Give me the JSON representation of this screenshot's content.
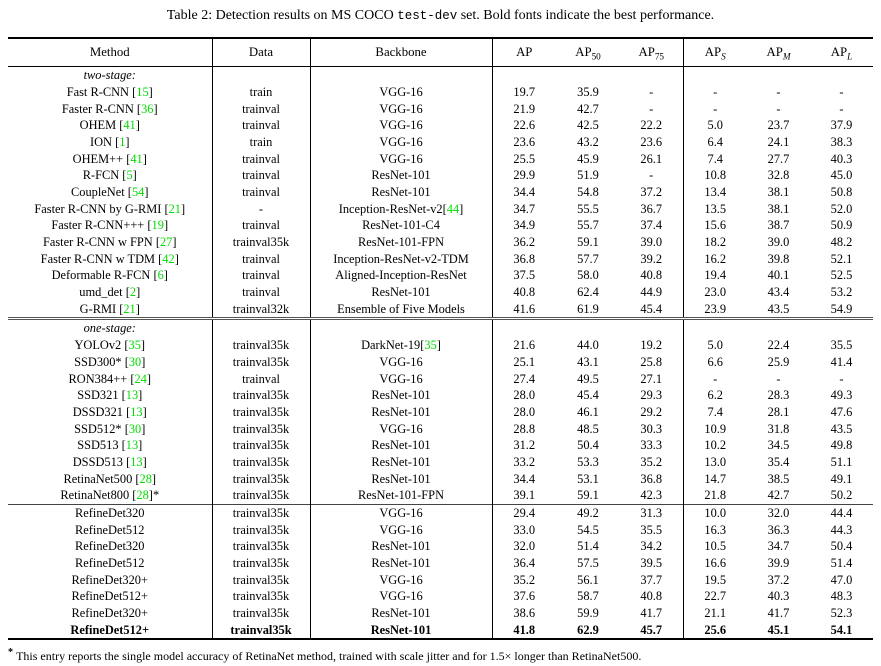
{
  "caption": {
    "prefix": "Table 2: Detection results on MS COCO ",
    "code": "test-dev",
    "suffix": " set. Bold fonts indicate the best performance."
  },
  "colors": {
    "citation": "#00dd00"
  },
  "table": {
    "headers": [
      {
        "base": "Method"
      },
      {
        "base": "Data"
      },
      {
        "base": "Backbone"
      },
      {
        "base": "AP"
      },
      {
        "base": "AP",
        "sub": "50"
      },
      {
        "base": "AP",
        "sub": "75"
      },
      {
        "base": "AP",
        "sub": "S"
      },
      {
        "base": "AP",
        "sub": "M"
      },
      {
        "base": "AP",
        "sub": "L"
      }
    ],
    "sections": [
      {
        "label": "two-stage:",
        "rows": [
          {
            "method": "Fast R-CNN",
            "cite": "15",
            "data": "train",
            "backbone": "VGG-16",
            "values": [
              "19.7",
              "35.9",
              "-",
              "-",
              "-",
              "-"
            ]
          },
          {
            "method": "Faster R-CNN",
            "cite": "36",
            "data": "trainval",
            "backbone": "VGG-16",
            "values": [
              "21.9",
              "42.7",
              "-",
              "-",
              "-",
              "-"
            ]
          },
          {
            "method": "OHEM",
            "cite": "41",
            "data": "trainval",
            "backbone": "VGG-16",
            "values": [
              "22.6",
              "42.5",
              "22.2",
              "5.0",
              "23.7",
              "37.9"
            ]
          },
          {
            "method": "ION",
            "cite": "1",
            "data": "train",
            "backbone": "VGG-16",
            "values": [
              "23.6",
              "43.2",
              "23.6",
              "6.4",
              "24.1",
              "38.3"
            ]
          },
          {
            "method": "OHEM++",
            "cite": "41",
            "data": "trainval",
            "backbone": "VGG-16",
            "values": [
              "25.5",
              "45.9",
              "26.1",
              "7.4",
              "27.7",
              "40.3"
            ]
          },
          {
            "method": "R-FCN",
            "cite": "5",
            "data": "trainval",
            "backbone": "ResNet-101",
            "values": [
              "29.9",
              "51.9",
              "-",
              "10.8",
              "32.8",
              "45.0"
            ]
          },
          {
            "method": "CoupleNet",
            "cite": "54",
            "data": "trainval",
            "backbone": "ResNet-101",
            "values": [
              "34.4",
              "54.8",
              "37.2",
              "13.4",
              "38.1",
              "50.8"
            ]
          },
          {
            "method": "Faster R-CNN by G-RMI",
            "cite": "21",
            "data": "-",
            "backbone": "Inception-ResNet-v2",
            "backbone_cite": "44",
            "values": [
              "34.7",
              "55.5",
              "36.7",
              "13.5",
              "38.1",
              "52.0"
            ]
          },
          {
            "method": "Faster R-CNN+++",
            "cite": "19",
            "data": "trainval",
            "backbone": "ResNet-101-C4",
            "values": [
              "34.9",
              "55.7",
              "37.4",
              "15.6",
              "38.7",
              "50.9"
            ]
          },
          {
            "method": "Faster R-CNN w FPN",
            "cite": "27",
            "data": "trainval35k",
            "backbone": "ResNet-101-FPN",
            "values": [
              "36.2",
              "59.1",
              "39.0",
              "18.2",
              "39.0",
              "48.2"
            ]
          },
          {
            "method": "Faster R-CNN w TDM",
            "cite": "42",
            "data": "trainval",
            "backbone": "Inception-ResNet-v2-TDM",
            "values": [
              "36.8",
              "57.7",
              "39.2",
              "16.2",
              "39.8",
              "52.1"
            ]
          },
          {
            "method": "Deformable R-FCN",
            "cite": "6",
            "data": "trainval",
            "backbone": "Aligned-Inception-ResNet",
            "values": [
              "37.5",
              "58.0",
              "40.8",
              "19.4",
              "40.1",
              "52.5"
            ]
          },
          {
            "method": "umd_det",
            "cite": "2",
            "data": "trainval",
            "backbone": "ResNet-101",
            "values": [
              "40.8",
              "62.4",
              "44.9",
              "23.0",
              "43.4",
              "53.2"
            ]
          },
          {
            "method": "G-RMI",
            "cite": "21",
            "data": "trainval32k",
            "backbone": "Ensemble of Five Models",
            "values": [
              "41.6",
              "61.9",
              "45.4",
              "23.9",
              "43.5",
              "54.9"
            ]
          }
        ]
      },
      {
        "label": "one-stage:",
        "rows": [
          {
            "method": "YOLOv2",
            "cite": "35",
            "data": "trainval35k",
            "backbone": "DarkNet-19",
            "backbone_cite": "35",
            "values": [
              "21.6",
              "44.0",
              "19.2",
              "5.0",
              "22.4",
              "35.5"
            ]
          },
          {
            "method": "SSD300*",
            "cite": "30",
            "data": "trainval35k",
            "backbone": "VGG-16",
            "values": [
              "25.1",
              "43.1",
              "25.8",
              "6.6",
              "25.9",
              "41.4"
            ]
          },
          {
            "method": "RON384++",
            "cite": "24",
            "data": "trainval",
            "backbone": "VGG-16",
            "values": [
              "27.4",
              "49.5",
              "27.1",
              "-",
              "-",
              "-"
            ]
          },
          {
            "method": "SSD321",
            "cite": "13",
            "data": "trainval35k",
            "backbone": "ResNet-101",
            "values": [
              "28.0",
              "45.4",
              "29.3",
              "6.2",
              "28.3",
              "49.3"
            ]
          },
          {
            "method": "DSSD321",
            "cite": "13",
            "data": "trainval35k",
            "backbone": "ResNet-101",
            "values": [
              "28.0",
              "46.1",
              "29.2",
              "7.4",
              "28.1",
              "47.6"
            ]
          },
          {
            "method": "SSD512*",
            "cite": "30",
            "data": "trainval35k",
            "backbone": "VGG-16",
            "values": [
              "28.8",
              "48.5",
              "30.3",
              "10.9",
              "31.8",
              "43.5"
            ]
          },
          {
            "method": "SSD513",
            "cite": "13",
            "data": "trainval35k",
            "backbone": "ResNet-101",
            "values": [
              "31.2",
              "50.4",
              "33.3",
              "10.2",
              "34.5",
              "49.8"
            ]
          },
          {
            "method": "DSSD513",
            "cite": "13",
            "data": "trainval35k",
            "backbone": "ResNet-101",
            "values": [
              "33.2",
              "53.3",
              "35.2",
              "13.0",
              "35.4",
              "51.1"
            ]
          },
          {
            "method": "RetinaNet500",
            "cite": "28",
            "data": "trainval35k",
            "backbone": "ResNet-101",
            "values": [
              "34.4",
              "53.1",
              "36.8",
              "14.7",
              "38.5",
              "49.1"
            ]
          },
          {
            "method": "RetinaNet800",
            "cite": "28",
            "suffix": "*",
            "data": "trainval35k",
            "backbone": "ResNet-101-FPN",
            "values": [
              "39.1",
              "59.1",
              "42.3",
              "21.8",
              "42.7",
              "50.2"
            ]
          }
        ]
      },
      {
        "label": null,
        "rows": [
          {
            "method": "RefineDet320",
            "data": "trainval35k",
            "backbone": "VGG-16",
            "values": [
              "29.4",
              "49.2",
              "31.3",
              "10.0",
              "32.0",
              "44.4"
            ]
          },
          {
            "method": "RefineDet512",
            "data": "trainval35k",
            "backbone": "VGG-16",
            "values": [
              "33.0",
              "54.5",
              "35.5",
              "16.3",
              "36.3",
              "44.3"
            ]
          },
          {
            "method": "RefineDet320",
            "data": "trainval35k",
            "backbone": "ResNet-101",
            "values": [
              "32.0",
              "51.4",
              "34.2",
              "10.5",
              "34.7",
              "50.4"
            ]
          },
          {
            "method": "RefineDet512",
            "data": "trainval35k",
            "backbone": "ResNet-101",
            "values": [
              "36.4",
              "57.5",
              "39.5",
              "16.6",
              "39.9",
              "51.4"
            ]
          },
          {
            "method": "RefineDet320+",
            "data": "trainval35k",
            "backbone": "VGG-16",
            "values": [
              "35.2",
              "56.1",
              "37.7",
              "19.5",
              "37.2",
              "47.0"
            ]
          },
          {
            "method": "RefineDet512+",
            "data": "trainval35k",
            "backbone": "VGG-16",
            "values": [
              "37.6",
              "58.7",
              "40.8",
              "22.7",
              "40.3",
              "48.3"
            ]
          },
          {
            "method": "RefineDet320+",
            "data": "trainval35k",
            "backbone": "ResNet-101",
            "values": [
              "38.6",
              "59.9",
              "41.7",
              "21.1",
              "41.7",
              "52.3"
            ]
          },
          {
            "method": "RefineDet512+",
            "data": "trainval35k",
            "backbone": "ResNet-101",
            "bold": true,
            "values": [
              "41.8",
              "62.9",
              "45.7",
              "25.6",
              "45.1",
              "54.1"
            ]
          }
        ]
      }
    ]
  },
  "footnote": {
    "marker": "*",
    "text": "This entry reports the single model accuracy of RetinaNet method, trained with scale jitter and for 1.5× longer than RetinaNet500."
  }
}
